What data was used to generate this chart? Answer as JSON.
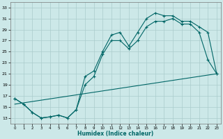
{
  "xlabel": "Humidex (Indice chaleur)",
  "background_color": "#cce8e8",
  "grid_color": "#aacccc",
  "line_color": "#006666",
  "xlim": [
    -0.5,
    23.5
  ],
  "ylim": [
    12,
    34
  ],
  "yticks": [
    13,
    15,
    17,
    19,
    21,
    23,
    25,
    27,
    29,
    31,
    33
  ],
  "xticks": [
    0,
    1,
    2,
    3,
    4,
    5,
    6,
    7,
    8,
    9,
    10,
    11,
    12,
    13,
    14,
    15,
    16,
    17,
    18,
    19,
    20,
    21,
    22,
    23
  ],
  "curve1_x": [
    0,
    1,
    2,
    3,
    4,
    5,
    6,
    7,
    8,
    9,
    10,
    11,
    12,
    13,
    14,
    15,
    16,
    17,
    18,
    19,
    20,
    21,
    22,
    23
  ],
  "curve1_y": [
    16.5,
    15.5,
    14.0,
    13.0,
    13.2,
    13.5,
    13.0,
    14.5,
    20.5,
    21.5,
    25.0,
    28.0,
    28.5,
    26.0,
    28.5,
    31.0,
    32.0,
    31.5,
    31.5,
    30.5,
    30.5,
    29.5,
    28.5,
    21.0
  ],
  "curve2_x": [
    0,
    1,
    2,
    3,
    4,
    5,
    6,
    7,
    8,
    9,
    10,
    11,
    12,
    13,
    14,
    15,
    16,
    17,
    18,
    19,
    20,
    21,
    22,
    23
  ],
  "curve2_y": [
    16.5,
    15.5,
    14.0,
    13.0,
    13.2,
    13.5,
    13.0,
    14.5,
    19.0,
    20.5,
    24.5,
    27.0,
    27.0,
    25.5,
    27.0,
    29.5,
    30.5,
    30.5,
    31.0,
    30.0,
    30.0,
    28.5,
    23.5,
    21.0
  ],
  "line_x": [
    0,
    23
  ],
  "line_y": [
    15.5,
    21.0
  ]
}
